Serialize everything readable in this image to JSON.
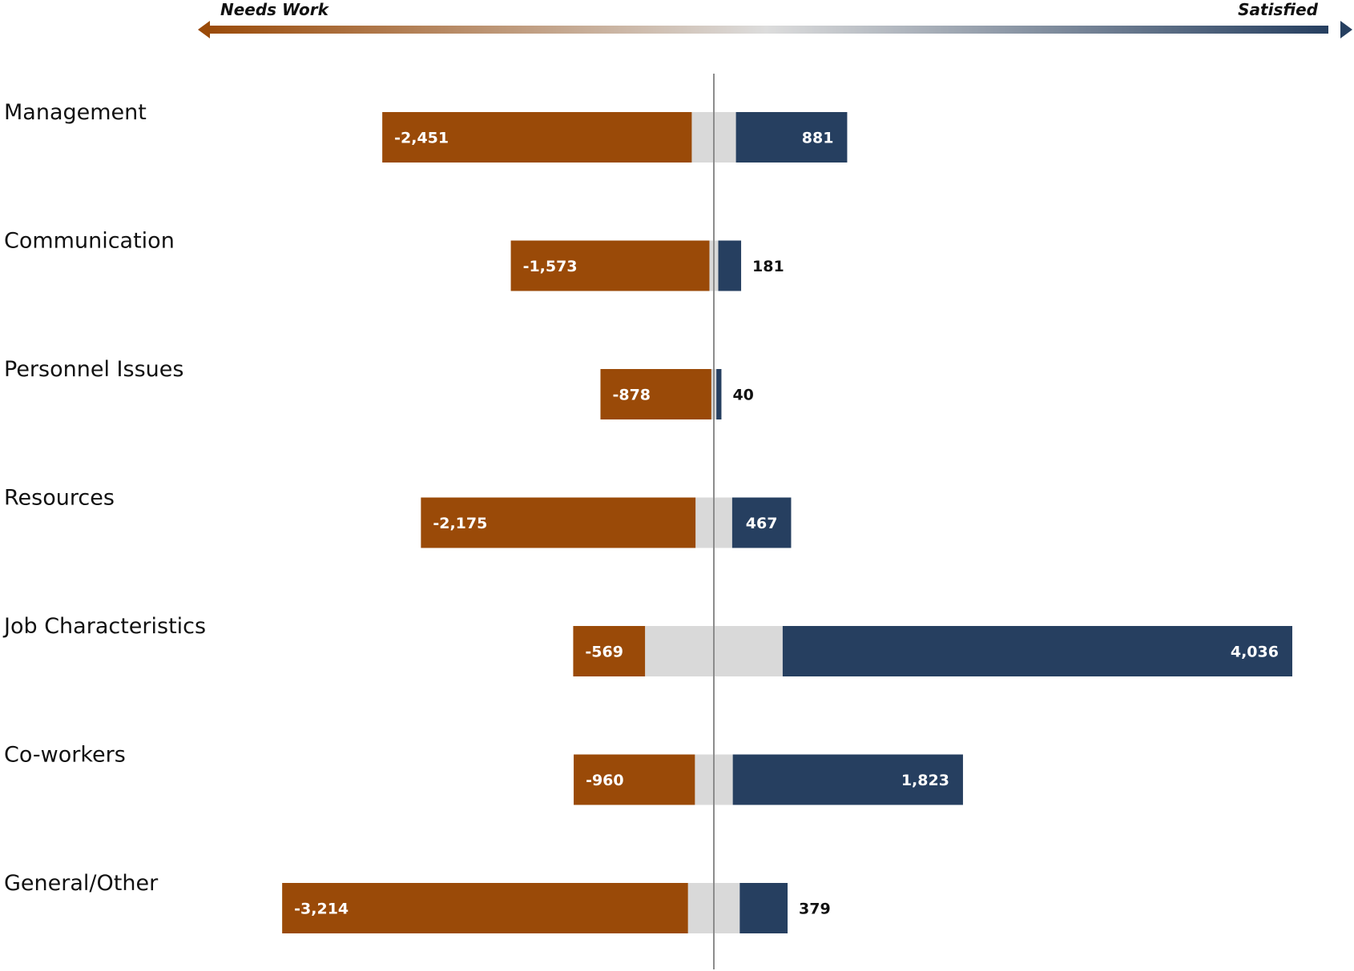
{
  "scale": {
    "left_label": "Needs Work",
    "right_label": "Satisfied"
  },
  "colors": {
    "negative": "#9a4a08",
    "neutral": "#d9d9d9",
    "positive": "#263f60",
    "axis": "#8c8c8c"
  },
  "chart_data": {
    "type": "bar",
    "orientation": "horizontal-diverging",
    "title": "",
    "xlabel": "",
    "ylabel": "",
    "grid": false,
    "categories": [
      "Management",
      "Communication",
      "Personnel Issues",
      "Resources",
      "Job Characteristics",
      "Co-workers",
      "General/Other"
    ],
    "series": [
      {
        "name": "Needs Work",
        "values": [
          -2451,
          -1573,
          -878,
          -2175,
          -569,
          -960,
          -3214
        ],
        "labels": [
          "-2,451",
          "-1,573",
          "-878",
          "-2,175",
          "-569",
          "-960",
          "-3,214"
        ]
      },
      {
        "values": [
          350,
          70,
          40,
          290,
          1090,
          300,
          410
        ]
      },
      {
        "name": "Satisfied",
        "values": [
          881,
          181,
          40,
          467,
          4036,
          1823,
          379
        ],
        "labels": [
          "881",
          "181",
          "40",
          "467",
          "4,036",
          "1,823",
          "379"
        ]
      }
    ]
  }
}
